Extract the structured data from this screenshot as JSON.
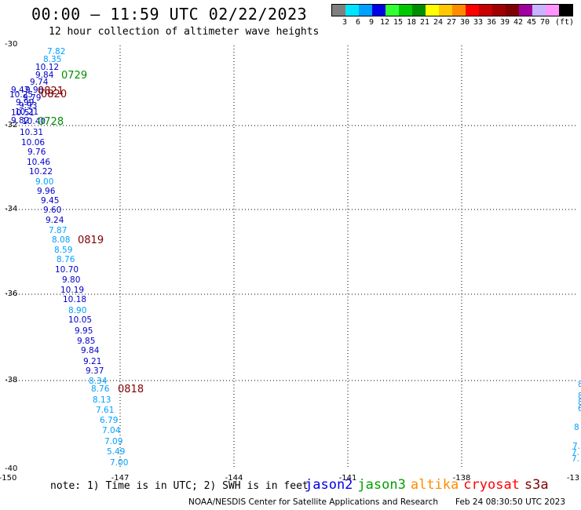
{
  "header": {
    "title": "00:00 – 11:59 UTC 02/22/2023",
    "subtitle": "12 hour collection of altimeter wave heights"
  },
  "scale": {
    "unit": "(ft)",
    "colors": [
      "#7f7f7f",
      "#00e5ff",
      "#00a0ff",
      "#0000e5",
      "#33ff33",
      "#00c800",
      "#008c00",
      "#ffff00",
      "#ffc800",
      "#ff8c00",
      "#ff0000",
      "#c80000",
      "#a00000",
      "#7f0000",
      "#a000a0",
      "#c8b4ff",
      "#ff96ff",
      "#000000"
    ],
    "labels": [
      "3",
      "6",
      "9",
      "12",
      "15",
      "18",
      "21",
      "24",
      "27",
      "30",
      "33",
      "36",
      "39",
      "42",
      "45",
      "70"
    ]
  },
  "axes": {
    "x_ticks": [
      "-150",
      "-147",
      "-144",
      "-141",
      "-138",
      "-13"
    ],
    "y_ticks": [
      "-30",
      "-32",
      "-34",
      "-36",
      "-38",
      "-40"
    ]
  },
  "track_labels": [
    {
      "text": "0729",
      "color": "#008c00"
    },
    {
      "text": "0821",
      "color": "#7f0000"
    },
    {
      "text": "0820",
      "color": "#7f0000"
    },
    {
      "text": "0728",
      "color": "#008c00"
    },
    {
      "text": "0819",
      "color": "#7f0000"
    },
    {
      "text": "0818",
      "color": "#7f0000"
    }
  ],
  "wave_heights": [
    {
      "text": "7.82",
      "color": "#00a0ff"
    },
    {
      "text": "8.35",
      "color": "#00a0ff"
    },
    {
      "text": "10.12",
      "color": "#0000c8"
    },
    {
      "text": "9.84",
      "color": "#0000c8"
    },
    {
      "text": "9.74",
      "color": "#0000c8"
    },
    {
      "text": "9.47",
      "color": "#0000c8"
    },
    {
      "text": "9.98",
      "color": "#0000c8"
    },
    {
      "text": "10.25",
      "color": "#0000c8"
    },
    {
      "text": "9.79",
      "color": "#0000c8"
    },
    {
      "text": "9.99",
      "color": "#0000c8"
    },
    {
      "text": "9.93",
      "color": "#0000c8"
    },
    {
      "text": "10.21",
      "color": "#0000c8"
    },
    {
      "text": "10.51",
      "color": "#0000c8"
    },
    {
      "text": "9.82",
      "color": "#0000c8"
    },
    {
      "text": "10.40",
      "color": "#0000c8"
    },
    {
      "text": "10.31",
      "color": "#0000c8"
    },
    {
      "text": "10.06",
      "color": "#0000c8"
    },
    {
      "text": "9.76",
      "color": "#0000c8"
    },
    {
      "text": "10.46",
      "color": "#0000c8"
    },
    {
      "text": "10.22",
      "color": "#0000c8"
    },
    {
      "text": "9.00",
      "color": "#00a0ff"
    },
    {
      "text": "9.96",
      "color": "#0000c8"
    },
    {
      "text": "9.45",
      "color": "#0000c8"
    },
    {
      "text": "9.60",
      "color": "#0000c8"
    },
    {
      "text": "9.24",
      "color": "#0000c8"
    },
    {
      "text": "7.87",
      "color": "#00a0ff"
    },
    {
      "text": "8.08",
      "color": "#00a0ff"
    },
    {
      "text": "8.59",
      "color": "#00a0ff"
    },
    {
      "text": "8.76",
      "color": "#00a0ff"
    },
    {
      "text": "10.70",
      "color": "#0000c8"
    },
    {
      "text": "9.80",
      "color": "#0000c8"
    },
    {
      "text": "10.19",
      "color": "#0000c8"
    },
    {
      "text": "10.18",
      "color": "#0000c8"
    },
    {
      "text": "8.90",
      "color": "#00a0ff"
    },
    {
      "text": "10.05",
      "color": "#0000c8"
    },
    {
      "text": "9.95",
      "color": "#0000c8"
    },
    {
      "text": "9.85",
      "color": "#0000c8"
    },
    {
      "text": "9.84",
      "color": "#0000c8"
    },
    {
      "text": "9.21",
      "color": "#0000c8"
    },
    {
      "text": "9.37",
      "color": "#0000c8"
    },
    {
      "text": "8.34",
      "color": "#00a0ff"
    },
    {
      "text": "8.76",
      "color": "#00a0ff"
    },
    {
      "text": "8.13",
      "color": "#00a0ff"
    },
    {
      "text": "7.61",
      "color": "#00a0ff"
    },
    {
      "text": "6.79",
      "color": "#00a0ff"
    },
    {
      "text": "7.04",
      "color": "#00a0ff"
    },
    {
      "text": "7.09",
      "color": "#00a0ff"
    },
    {
      "text": "5.49",
      "color": "#00a0ff"
    },
    {
      "text": "7.00",
      "color": "#00a0ff"
    }
  ],
  "edge_values": [
    {
      "text": "8",
      "color": "#00a0ff"
    },
    {
      "text": "8",
      "color": "#00a0ff"
    },
    {
      "text": "8",
      "color": "#00a0ff"
    },
    {
      "text": "6",
      "color": "#00a0ff"
    },
    {
      "text": "8",
      "color": "#00a0ff"
    },
    {
      "text": "7.",
      "color": "#00a0ff"
    },
    {
      "text": "7.",
      "color": "#00a0ff"
    },
    {
      "text": "7.",
      "color": "#00a0ff"
    }
  ],
  "footer": {
    "note": "note: 1) Time is in UTC; 2) SWH is in feet",
    "satellites": [
      {
        "name": "jason2",
        "color": "#0000e5"
      },
      {
        "name": "jason3",
        "color": "#00a000"
      },
      {
        "name": "altika",
        "color": "#ff8c00"
      },
      {
        "name": "cryosat",
        "color": "#ff0000"
      },
      {
        "name": "s3a",
        "color": "#7f0000"
      }
    ],
    "credit": "NOAA/NESDIS Center for Satellite Applications and Research",
    "timestamp": "Feb 24 08:30:50 UTC 2023"
  }
}
